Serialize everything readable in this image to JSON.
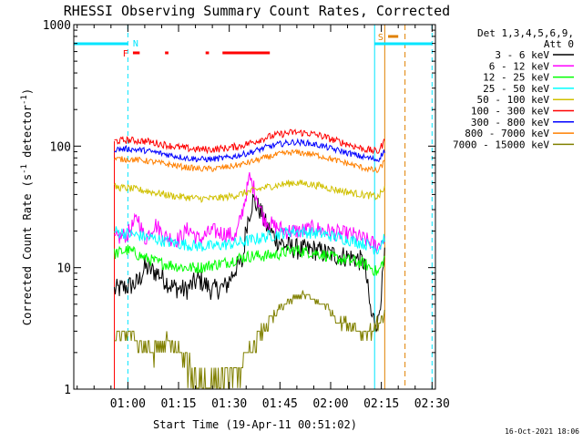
{
  "chart_data": {
    "type": "line",
    "title": "RHESSI Observing Summary Count Rates, Corrected",
    "xlabel": "Start Time (19-Apr-11 00:51:02)",
    "ylabel": "Corrected Count Rate (s",
    "ylabel_sup": "-1",
    "ylabel_rest": " detector",
    "ylabel_sup2": "-1",
    "ylabel_close": ")",
    "yscale": "log",
    "ylim": [
      1,
      1000
    ],
    "y_ticks": [
      {
        "value": 1,
        "label": "1"
      },
      {
        "value": 10,
        "label": "10"
      },
      {
        "value": 100,
        "label": "100"
      },
      {
        "value": 1000,
        "label": "1000"
      }
    ],
    "xlim_min": [
      -7,
      100
    ],
    "x_ticks": [
      {
        "value": 9,
        "label": "01:00"
      },
      {
        "value": 24,
        "label": "01:15"
      },
      {
        "value": 39,
        "label": "01:30"
      },
      {
        "value": 54,
        "label": "01:45"
      },
      {
        "value": 69,
        "label": "02:00"
      },
      {
        "value": 84,
        "label": "02:15"
      },
      {
        "value": 99,
        "label": "02:30"
      }
    ],
    "legend": {
      "header1": "Det 1,3,4,5,6,9,",
      "header2": "Att 0",
      "placement": "right"
    },
    "series": [
      {
        "name": "3 - 6 keV",
        "color": "#000000",
        "points": [
          [
            5,
            6.5
          ],
          [
            9,
            7
          ],
          [
            12,
            7.5
          ],
          [
            14,
            10
          ],
          [
            18,
            9
          ],
          [
            22,
            7
          ],
          [
            26,
            6.5
          ],
          [
            30,
            8
          ],
          [
            34,
            6.5
          ],
          [
            38,
            7
          ],
          [
            41,
            10
          ],
          [
            43,
            11
          ],
          [
            44,
            22
          ],
          [
            46,
            36
          ],
          [
            48,
            30
          ],
          [
            50,
            22
          ],
          [
            53,
            17
          ],
          [
            56,
            15
          ],
          [
            60,
            14
          ],
          [
            64,
            14
          ],
          [
            68,
            13
          ],
          [
            72,
            12.5
          ],
          [
            76,
            12
          ],
          [
            79,
            11
          ],
          [
            81,
            4
          ],
          [
            83,
            3.5
          ],
          [
            85,
            12
          ]
        ]
      },
      {
        "name": "6 - 12 keV",
        "color": "#ff00ff",
        "points": [
          [
            5,
            17
          ],
          [
            9,
            19
          ],
          [
            12,
            26
          ],
          [
            14,
            17
          ],
          [
            17,
            23
          ],
          [
            20,
            18
          ],
          [
            24,
            17
          ],
          [
            27,
            21
          ],
          [
            30,
            17
          ],
          [
            34,
            20
          ],
          [
            38,
            19
          ],
          [
            41,
            18
          ],
          [
            43,
            30
          ],
          [
            45,
            55
          ],
          [
            47,
            40
          ],
          [
            49,
            26
          ],
          [
            52,
            22
          ],
          [
            56,
            20
          ],
          [
            60,
            20
          ],
          [
            64,
            21
          ],
          [
            68,
            20
          ],
          [
            72,
            19
          ],
          [
            76,
            18.5
          ],
          [
            79,
            17
          ],
          [
            83,
            15
          ],
          [
            85,
            18
          ]
        ]
      },
      {
        "name": "12 - 25 keV",
        "color": "#00ff00",
        "points": [
          [
            5,
            13
          ],
          [
            9,
            14
          ],
          [
            14,
            12
          ],
          [
            18,
            11
          ],
          [
            22,
            10.5
          ],
          [
            26,
            10
          ],
          [
            30,
            10
          ],
          [
            34,
            10.5
          ],
          [
            38,
            11
          ],
          [
            42,
            12
          ],
          [
            46,
            12.5
          ],
          [
            50,
            12.5
          ],
          [
            54,
            13
          ],
          [
            58,
            14
          ],
          [
            62,
            13.5
          ],
          [
            66,
            13
          ],
          [
            70,
            12
          ],
          [
            74,
            11.5
          ],
          [
            78,
            11
          ],
          [
            81,
            10
          ],
          [
            83,
            9
          ],
          [
            85,
            12
          ]
        ]
      },
      {
        "name": "25 - 50 keV",
        "color": "#00ffff",
        "points": [
          [
            5,
            20
          ],
          [
            9,
            19
          ],
          [
            14,
            18
          ],
          [
            18,
            17
          ],
          [
            22,
            16
          ],
          [
            26,
            15.5
          ],
          [
            30,
            15
          ],
          [
            34,
            15
          ],
          [
            38,
            15.5
          ],
          [
            42,
            16
          ],
          [
            46,
            17
          ],
          [
            50,
            18
          ],
          [
            54,
            19
          ],
          [
            58,
            20
          ],
          [
            62,
            19.5
          ],
          [
            66,
            19
          ],
          [
            70,
            18
          ],
          [
            74,
            17
          ],
          [
            78,
            16
          ],
          [
            81,
            15
          ],
          [
            83,
            14
          ],
          [
            85,
            18
          ]
        ]
      },
      {
        "name": "50 - 100 keV",
        "color": "#d0c000",
        "points": [
          [
            5,
            46
          ],
          [
            9,
            45
          ],
          [
            14,
            43
          ],
          [
            18,
            41
          ],
          [
            22,
            39
          ],
          [
            26,
            38
          ],
          [
            30,
            37
          ],
          [
            34,
            37
          ],
          [
            38,
            38
          ],
          [
            42,
            40
          ],
          [
            46,
            43
          ],
          [
            50,
            46
          ],
          [
            54,
            48
          ],
          [
            58,
            50
          ],
          [
            62,
            49
          ],
          [
            66,
            47
          ],
          [
            70,
            44
          ],
          [
            74,
            42
          ],
          [
            78,
            40
          ],
          [
            81,
            39
          ],
          [
            83,
            38
          ],
          [
            85,
            45
          ]
        ]
      },
      {
        "name": "100 - 300 keV",
        "color": "#ff0000",
        "points": [
          [
            5,
            110
          ],
          [
            9,
            112
          ],
          [
            14,
            110
          ],
          [
            18,
            105
          ],
          [
            22,
            100
          ],
          [
            26,
            96
          ],
          [
            30,
            94
          ],
          [
            34,
            94
          ],
          [
            38,
            96
          ],
          [
            42,
            100
          ],
          [
            46,
            108
          ],
          [
            50,
            118
          ],
          [
            54,
            125
          ],
          [
            58,
            130
          ],
          [
            62,
            128
          ],
          [
            66,
            122
          ],
          [
            70,
            112
          ],
          [
            74,
            104
          ],
          [
            78,
            96
          ],
          [
            81,
            92
          ],
          [
            83,
            90
          ],
          [
            85,
            110
          ]
        ]
      },
      {
        "name": "300 - 800 keV",
        "color": "#0000ff",
        "points": [
          [
            5,
            94
          ],
          [
            9,
            95
          ],
          [
            14,
            92
          ],
          [
            18,
            88
          ],
          [
            22,
            84
          ],
          [
            26,
            80
          ],
          [
            30,
            78
          ],
          [
            34,
            78
          ],
          [
            38,
            80
          ],
          [
            42,
            84
          ],
          [
            46,
            90
          ],
          [
            50,
            98
          ],
          [
            54,
            104
          ],
          [
            58,
            108
          ],
          [
            62,
            106
          ],
          [
            66,
            101
          ],
          [
            70,
            94
          ],
          [
            74,
            88
          ],
          [
            78,
            82
          ],
          [
            81,
            79
          ],
          [
            83,
            77
          ],
          [
            85,
            92
          ]
        ]
      },
      {
        "name": "800 - 7000 keV",
        "color": "#ff8000",
        "points": [
          [
            5,
            78
          ],
          [
            9,
            78
          ],
          [
            14,
            76
          ],
          [
            18,
            73
          ],
          [
            22,
            70
          ],
          [
            26,
            67
          ],
          [
            30,
            65
          ],
          [
            34,
            65
          ],
          [
            38,
            67
          ],
          [
            42,
            70
          ],
          [
            46,
            75
          ],
          [
            50,
            81
          ],
          [
            54,
            86
          ],
          [
            58,
            89
          ],
          [
            62,
            87
          ],
          [
            66,
            83
          ],
          [
            70,
            77
          ],
          [
            74,
            72
          ],
          [
            78,
            67
          ],
          [
            81,
            64
          ],
          [
            83,
            62
          ],
          [
            85,
            75
          ]
        ]
      },
      {
        "name": "7000 - 15000 keV",
        "color": "#808000",
        "points": [
          [
            5,
            2.5
          ],
          [
            9,
            3
          ],
          [
            12,
            2.5
          ],
          [
            16,
            2
          ],
          [
            20,
            2.5
          ],
          [
            24,
            2
          ],
          [
            27,
            1.5
          ],
          [
            30,
            1.2
          ],
          [
            34,
            1.1
          ],
          [
            38,
            1.1
          ],
          [
            42,
            1.5
          ],
          [
            45,
            2
          ],
          [
            48,
            2.8
          ],
          [
            51,
            3.5
          ],
          [
            54,
            4.5
          ],
          [
            58,
            5.5
          ],
          [
            61,
            6
          ],
          [
            64,
            5.5
          ],
          [
            67,
            5
          ],
          [
            70,
            4
          ],
          [
            73,
            3.5
          ],
          [
            76,
            3.2
          ],
          [
            79,
            3
          ],
          [
            81,
            3
          ],
          [
            83,
            3.5
          ],
          [
            85,
            4
          ]
        ]
      }
    ],
    "flags": {
      "N_label": "N",
      "F_label": "F",
      "S_label": "S",
      "night_segments": [
        [
          -7,
          9
        ],
        [
          82,
          99
        ]
      ],
      "flare_segments": [
        [
          10.5,
          12.5
        ],
        [
          20,
          21
        ],
        [
          32,
          33
        ],
        [
          37,
          51
        ]
      ],
      "saa_segments": [
        [
          86,
          89
        ]
      ]
    },
    "vertical_markers": {
      "cyan_dashed": [
        9,
        99
      ],
      "cyan_solid": [
        -7,
        82
      ],
      "orange_solid": [
        85
      ],
      "orange_dashed": [
        91
      ],
      "red_solid": [
        5
      ]
    },
    "footer_date": "16-Oct-2021 18:06"
  }
}
